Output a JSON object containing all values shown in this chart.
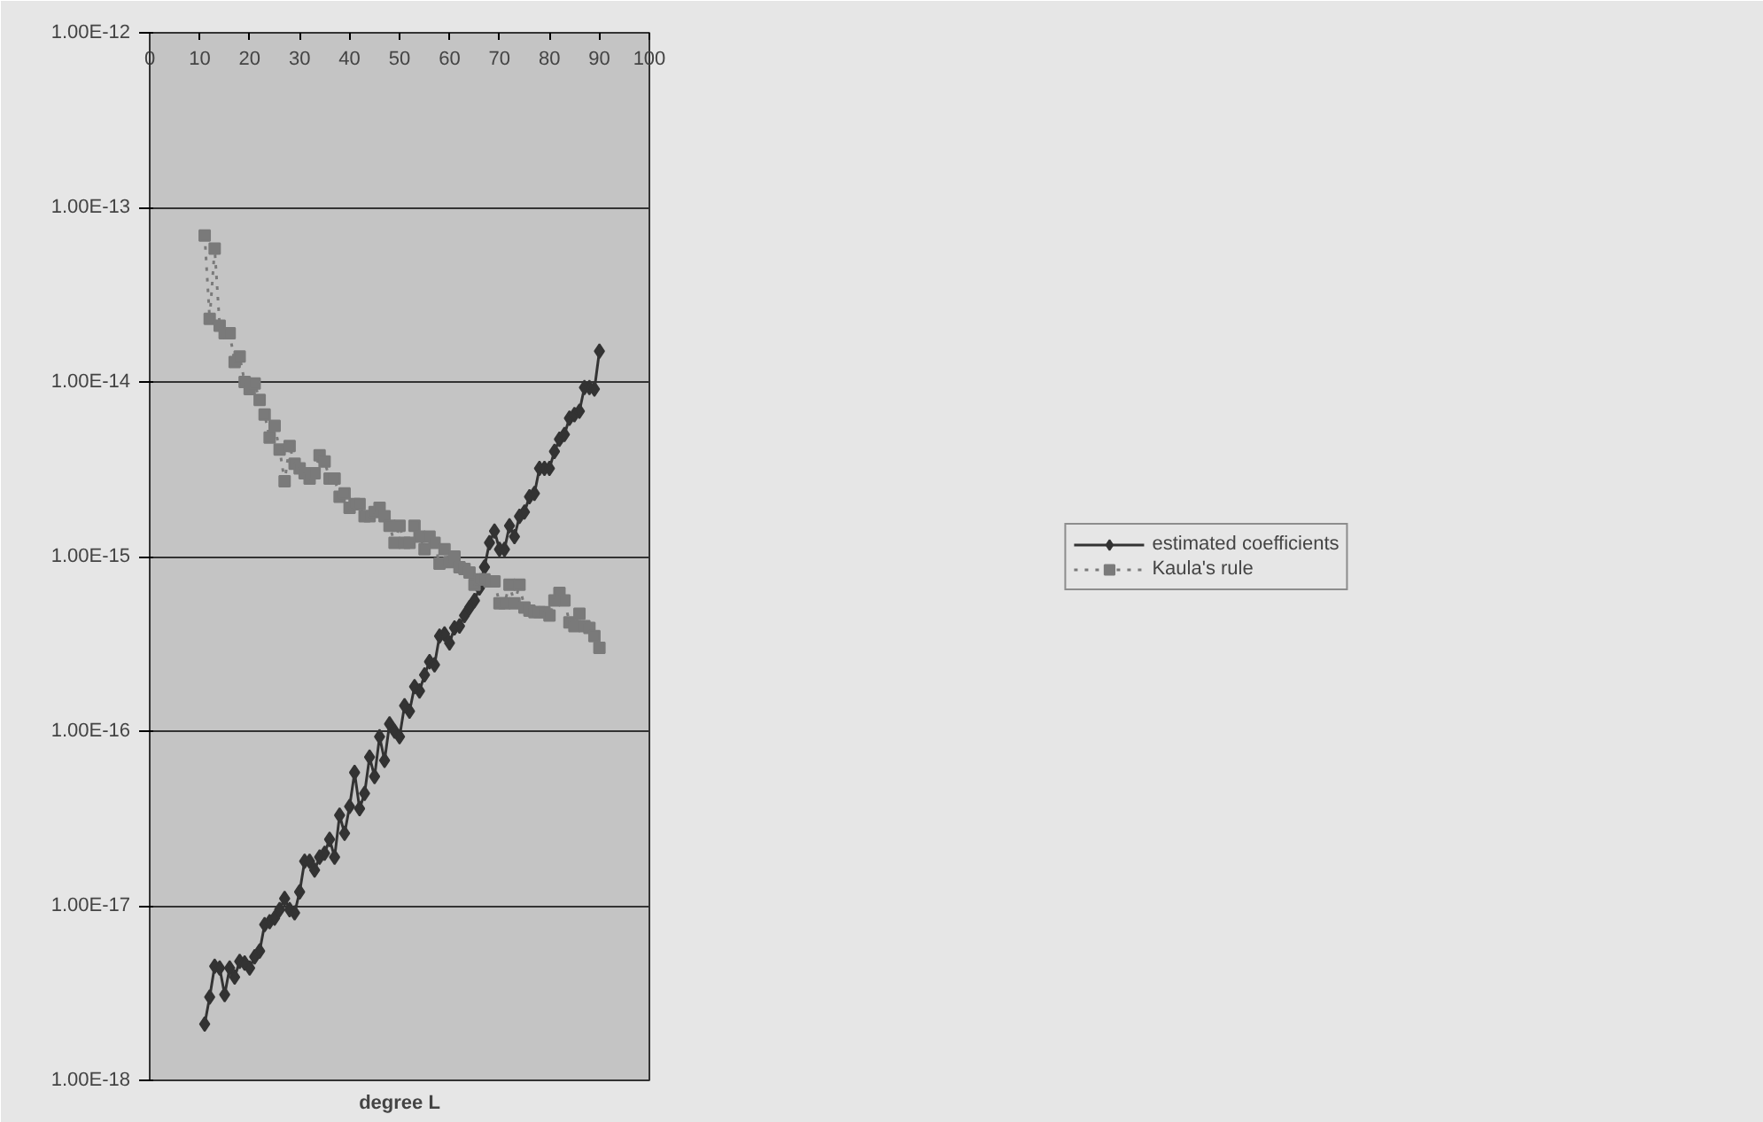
{
  "chart_data": {
    "type": "line",
    "xlabel": "degree L",
    "log": "y",
    "grid": "y",
    "legend": "right",
    "xlim": [
      0,
      100
    ],
    "xticks": [
      0,
      10,
      20,
      30,
      40,
      50,
      60,
      70,
      80,
      90,
      100
    ],
    "ylim": [
      1e-18,
      1e-12
    ],
    "yticks": [
      {
        "value": 1e-18,
        "label": "1.00E-18"
      },
      {
        "value": 1e-17,
        "label": "1.00E-17"
      },
      {
        "value": 1e-16,
        "label": "1.00E-16"
      },
      {
        "value": 1e-15,
        "label": "1.00E-15"
      },
      {
        "value": 1e-14,
        "label": "1.00E-14"
      },
      {
        "value": 1e-13,
        "label": "1.00E-13"
      },
      {
        "value": 1e-12,
        "label": "1.00E-12"
      }
    ],
    "x": [
      11,
      12,
      13,
      14,
      15,
      16,
      17,
      18,
      19,
      20,
      21,
      22,
      23,
      24,
      25,
      26,
      27,
      28,
      29,
      30,
      31,
      32,
      33,
      34,
      35,
      36,
      37,
      38,
      39,
      40,
      41,
      42,
      43,
      44,
      45,
      46,
      47,
      48,
      49,
      50,
      51,
      52,
      53,
      54,
      55,
      56,
      57,
      58,
      59,
      60,
      61,
      62,
      63,
      64,
      65,
      66,
      67,
      68,
      69,
      70,
      71,
      72,
      73,
      74,
      75,
      76,
      77,
      78,
      79,
      80,
      81,
      82,
      83,
      84,
      85,
      86,
      87,
      88,
      89,
      90
    ],
    "series": [
      {
        "name": "estimated coefficients",
        "color": "#333333",
        "marker": "diamond",
        "line_style": "solid",
        "values": [
          2.1e-18,
          3e-18,
          4.5e-18,
          4.4e-18,
          3.1e-18,
          4.4e-18,
          3.9e-18,
          4.8e-18,
          4.7e-18,
          4.4e-18,
          5.1e-18,
          5.5e-18,
          7.8e-18,
          8.1e-18,
          8.5e-18,
          9.5e-18,
          1.1e-17,
          9.5e-18,
          9.1e-18,
          1.2e-17,
          1.8e-17,
          1.8e-17,
          1.6e-17,
          1.9e-17,
          2e-17,
          2.4e-17,
          1.9e-17,
          3.3e-17,
          2.6e-17,
          3.7e-17,
          5.8e-17,
          3.6e-17,
          4.4e-17,
          7.1e-17,
          5.5e-17,
          9.3e-17,
          6.8e-17,
          1.1e-16,
          1e-16,
          9.3e-17,
          1.4e-16,
          1.3e-16,
          1.8e-16,
          1.7e-16,
          2.1e-16,
          2.5e-16,
          2.4e-16,
          3.5e-16,
          3.6e-16,
          3.2e-16,
          3.9e-16,
          4e-16,
          4.6e-16,
          5.1e-16,
          5.6e-16,
          6.6e-16,
          8.7e-16,
          1.2e-15,
          1.4e-15,
          1.1e-15,
          1.1e-15,
          1.5e-15,
          1.3e-15,
          1.7e-15,
          1.8e-15,
          2.2e-15,
          2.3e-15,
          3.2e-15,
          3.2e-15,
          3.2e-15,
          4e-15,
          4.7e-15,
          5e-15,
          6.2e-15,
          6.5e-15,
          6.8e-15,
          9.3e-15,
          9.3e-15,
          9.1e-15,
          1.5e-14
        ]
      },
      {
        "name": "Kaula's rule",
        "color": "#7a7a7a",
        "marker": "square",
        "line_style": "dotted",
        "values": [
          6.9e-14,
          2.3e-14,
          5.8e-14,
          2.1e-14,
          1.9e-14,
          1.9e-14,
          1.3e-14,
          1.4e-14,
          1e-14,
          9.1e-15,
          9.8e-15,
          7.9e-15,
          6.5e-15,
          4.8e-15,
          5.6e-15,
          4.1e-15,
          2.7e-15,
          4.3e-15,
          3.4e-15,
          3.2e-15,
          3e-15,
          2.8e-15,
          3e-15,
          3.8e-15,
          3.5e-15,
          2.8e-15,
          2.8e-15,
          2.2e-15,
          2.3e-15,
          1.9e-15,
          2e-15,
          2e-15,
          1.7e-15,
          1.7e-15,
          1.8e-15,
          1.9e-15,
          1.7e-15,
          1.5e-15,
          1.2e-15,
          1.5e-15,
          1.2e-15,
          1.2e-15,
          1.5e-15,
          1.3e-15,
          1.1e-15,
          1.3e-15,
          1.2e-15,
          9.1e-16,
          1.1e-15,
          9.3e-16,
          1e-15,
          8.7e-16,
          8.5e-16,
          8.1e-16,
          6.9e-16,
          7.4e-16,
          7.4e-16,
          7.2e-16,
          7.2e-16,
          5.4e-16,
          5.4e-16,
          6.9e-16,
          5.4e-16,
          6.9e-16,
          5.1e-16,
          4.9e-16,
          4.8e-16,
          4.8e-16,
          4.8e-16,
          4.6e-16,
          5.6e-16,
          6.2e-16,
          5.6e-16,
          4.2e-16,
          4e-16,
          4.7e-16,
          4e-16,
          3.9e-16,
          3.5e-16,
          3e-16
        ]
      }
    ]
  }
}
